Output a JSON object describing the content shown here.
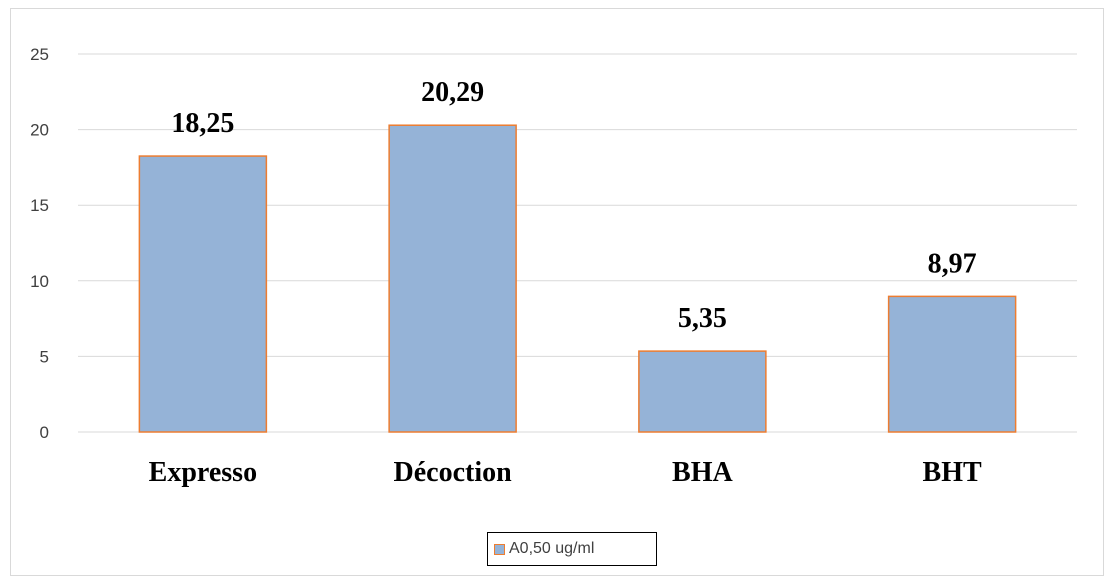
{
  "chart_data": {
    "type": "bar",
    "categories": [
      "Expresso",
      "Décoction",
      "BHA",
      "BHT"
    ],
    "series": [
      {
        "name": "A0,50 ug/ml",
        "values": [
          18.25,
          20.29,
          5.35,
          8.97
        ]
      }
    ],
    "data_labels": [
      "18,25",
      "20,29",
      "5,35",
      "8,97"
    ],
    "y_ticks": [
      "0",
      "5",
      "10",
      "15",
      "20",
      "25"
    ],
    "ylim": [
      0,
      25
    ],
    "title": "",
    "xlabel": "",
    "ylabel": "",
    "grid": true,
    "legend_position": "bottom",
    "colors": {
      "bar_fill": "#95b3d7",
      "bar_edge": "#ed7d31",
      "grid": "#d9d9d9"
    }
  }
}
